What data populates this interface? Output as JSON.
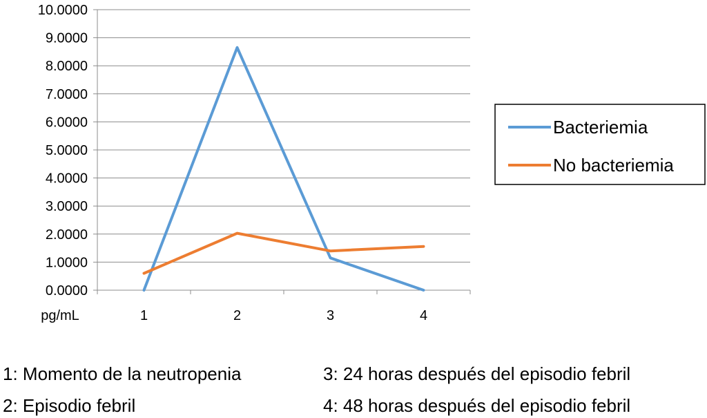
{
  "chart_data": {
    "type": "line",
    "x": [
      "1",
      "2",
      "3",
      "4"
    ],
    "xlabel": "pg/mL",
    "ylim": [
      0,
      10
    ],
    "yticks": [
      "0.0000",
      "1.0000",
      "2.0000",
      "3.0000",
      "4.0000",
      "5.0000",
      "6.0000",
      "7.0000",
      "8.0000",
      "9.0000",
      "10.0000"
    ],
    "grid": true,
    "legend": "right",
    "series": [
      {
        "name": "Bacteriemia",
        "values": [
          0.0,
          8.65,
          1.15,
          0.0
        ],
        "color": "#5b9bd5"
      },
      {
        "name": "No bacteriemia",
        "values": [
          0.6,
          2.03,
          1.4,
          1.56
        ],
        "color": "#ed7d31"
      }
    ]
  },
  "notes": [
    "1: Momento de la neutropenia",
    "3: 24 horas después del episodio febril",
    "2: Episodio febril",
    "4: 48 horas después del episodio febril"
  ]
}
